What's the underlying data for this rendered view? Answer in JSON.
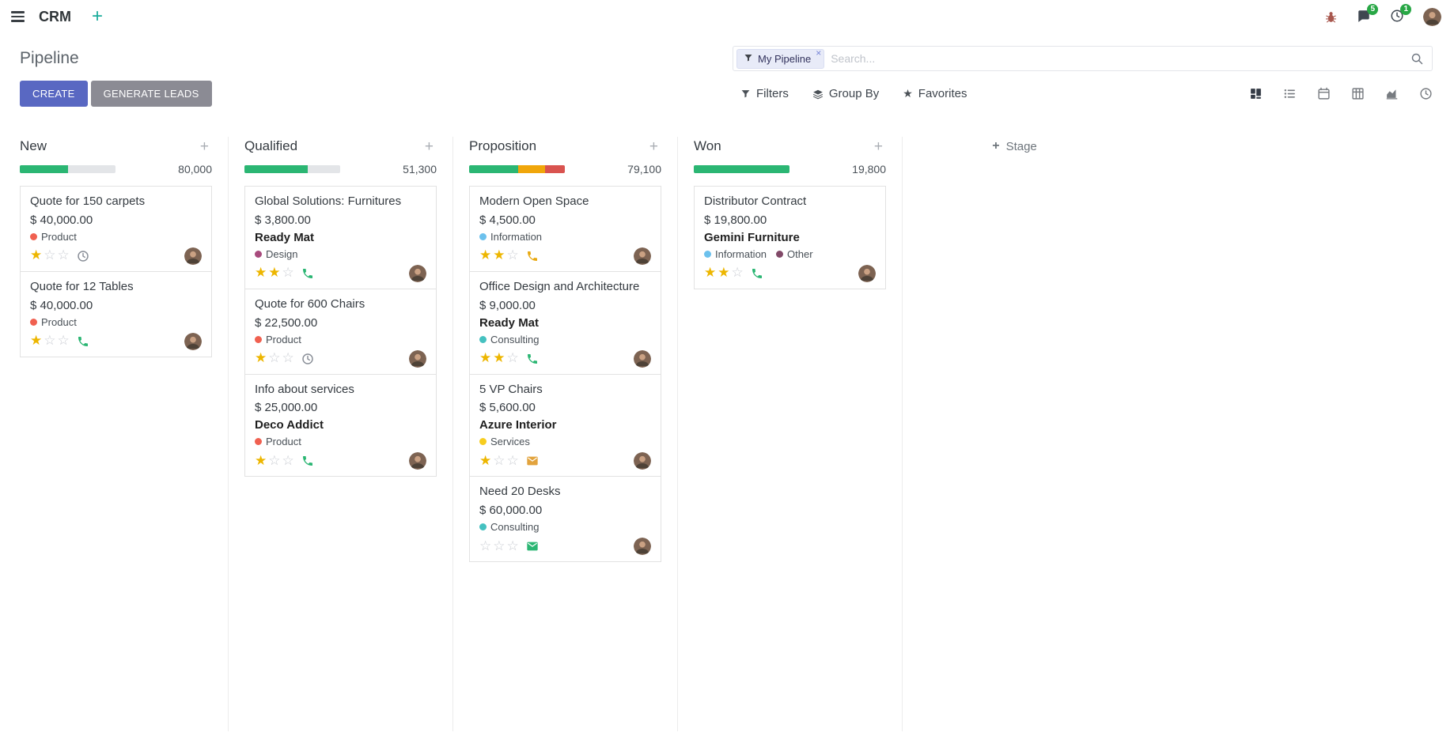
{
  "colors": {
    "primary": "#5968c2",
    "secondary_button": "#8b8b94",
    "success": "#2bb673",
    "warning": "#f0a60a",
    "danger": "#d9534f",
    "star": "#edb600",
    "badge": "#28a745"
  },
  "navbar": {
    "app_name": "CRM",
    "messages_badge": "5",
    "activities_badge": "1"
  },
  "control_panel": {
    "title": "Pipeline",
    "create_label": "CREATE",
    "generate_leads_label": "GENERATE LEADS",
    "search": {
      "facet_label": "My Pipeline",
      "facet_remove": "×",
      "placeholder": "Search..."
    },
    "menus": {
      "filters": "Filters",
      "group_by": "Group By",
      "favorites": "Favorites"
    },
    "view_switcher": [
      "kanban",
      "list",
      "calendar",
      "pivot",
      "graph",
      "activity"
    ],
    "active_view": "kanban"
  },
  "board": {
    "add_stage_label": "Stage",
    "columns": [
      {
        "name": "New",
        "total": "80,000",
        "progress": [
          {
            "color": "#2bb673",
            "pct": 50
          }
        ],
        "cards": [
          {
            "title": "Quote for 150 carpets",
            "amount": "$ 40,000.00",
            "partner": "",
            "tags": [
              {
                "label": "Product",
                "color": "#f06050"
              }
            ],
            "stars": 1,
            "activity": {
              "type": "clock",
              "color": "#8a8f98"
            }
          },
          {
            "title": "Quote for 12 Tables",
            "amount": "$ 40,000.00",
            "partner": "",
            "tags": [
              {
                "label": "Product",
                "color": "#f06050"
              }
            ],
            "stars": 1,
            "activity": {
              "type": "phone",
              "color": "#2bb673"
            }
          }
        ]
      },
      {
        "name": "Qualified",
        "total": "51,300",
        "progress": [
          {
            "color": "#2bb673",
            "pct": 66
          }
        ],
        "cards": [
          {
            "title": "Global Solutions: Furnitures",
            "amount": "$ 3,800.00",
            "partner": "Ready Mat",
            "tags": [
              {
                "label": "Design",
                "color": "#a84b7d"
              }
            ],
            "stars": 2,
            "activity": {
              "type": "phone",
              "color": "#2bb673"
            }
          },
          {
            "title": "Quote for 600 Chairs",
            "amount": "$ 22,500.00",
            "partner": "",
            "tags": [
              {
                "label": "Product",
                "color": "#f06050"
              }
            ],
            "stars": 1,
            "activity": {
              "type": "clock",
              "color": "#8a8f98"
            }
          },
          {
            "title": "Info about services",
            "amount": "$ 25,000.00",
            "partner": "Deco Addict",
            "tags": [
              {
                "label": "Product",
                "color": "#f06050"
              }
            ],
            "stars": 1,
            "activity": {
              "type": "phone",
              "color": "#2bb673"
            }
          }
        ]
      },
      {
        "name": "Proposition",
        "total": "79,100",
        "progress": [
          {
            "color": "#2bb673",
            "pct": 51
          },
          {
            "color": "#f0a60a",
            "pct": 28
          },
          {
            "color": "#d9534f",
            "pct": 21
          }
        ],
        "cards": [
          {
            "title": "Modern Open Space",
            "amount": "$ 4,500.00",
            "partner": "",
            "tags": [
              {
                "label": "Information",
                "color": "#6cc1ed"
              }
            ],
            "stars": 2,
            "activity": {
              "type": "phone",
              "color": "#e8a912"
            }
          },
          {
            "title": "Office Design and Architecture",
            "amount": "$ 9,000.00",
            "partner": "Ready Mat",
            "tags": [
              {
                "label": "Consulting",
                "color": "#45c1c0"
              }
            ],
            "stars": 2,
            "activity": {
              "type": "phone",
              "color": "#2bb673"
            }
          },
          {
            "title": "5 VP Chairs",
            "amount": "$ 5,600.00",
            "partner": "Azure Interior",
            "tags": [
              {
                "label": "Services",
                "color": "#f7cd1f"
              }
            ],
            "stars": 1,
            "activity": {
              "type": "mail",
              "color": "#e2a33d"
            }
          },
          {
            "title": "Need 20 Desks",
            "amount": "$ 60,000.00",
            "partner": "",
            "tags": [
              {
                "label": "Consulting",
                "color": "#45c1c0"
              }
            ],
            "stars": 0,
            "activity": {
              "type": "mail",
              "color": "#2bb673"
            }
          }
        ]
      },
      {
        "name": "Won",
        "total": "19,800",
        "progress": [
          {
            "color": "#2bb673",
            "pct": 100
          }
        ],
        "cards": [
          {
            "title": "Distributor Contract",
            "amount": "$ 19,800.00",
            "partner": "Gemini Furniture",
            "tags": [
              {
                "label": "Information",
                "color": "#6cc1ed"
              },
              {
                "label": "Other",
                "color": "#814968"
              }
            ],
            "stars": 2,
            "activity": {
              "type": "phone",
              "color": "#2bb673"
            }
          }
        ]
      }
    ]
  }
}
